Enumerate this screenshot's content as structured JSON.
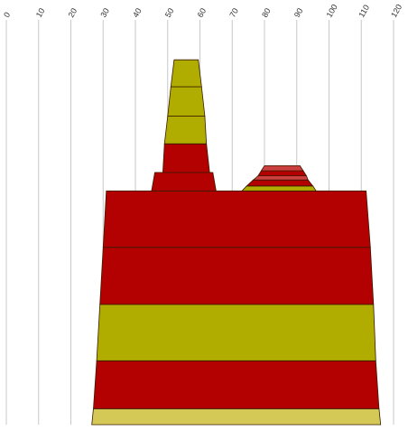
{
  "chart_data": {
    "type": "area",
    "subtype": "stacked-trapezoid-layers",
    "grid": true,
    "x_axis": {
      "position": "top",
      "range": [
        0,
        120
      ],
      "tick_labels": [
        "0",
        "10",
        "20",
        "30",
        "40",
        "50",
        "60",
        "70",
        "80",
        "90",
        "100",
        "110",
        "120"
      ],
      "tick_values": [
        0,
        10,
        20,
        30,
        40,
        50,
        60,
        70,
        80,
        90,
        100,
        110,
        120
      ]
    },
    "y_axis": {
      "range": [
        0,
        4.6
      ],
      "tick_labels": []
    },
    "colors": {
      "dark_red": "#b30000",
      "olive": "#b0ac00",
      "pale_olive": "#d4c957",
      "light_red": "#cd4040",
      "outline": "#3a1a00",
      "grid": "#c8c8c8"
    },
    "series": [
      {
        "layers": [
          {
            "bottom": 0.0,
            "top": 0.19,
            "x_bottom": [
              26.5,
              116.0
            ],
            "x_top": [
              27.0,
              115.5
            ],
            "color": "pale_olive"
          },
          {
            "bottom": 0.19,
            "top": 0.76,
            "x_bottom": [
              27.0,
              115.5
            ],
            "x_top": [
              28.0,
              114.5
            ],
            "color": "dark_red"
          },
          {
            "bottom": 0.76,
            "top": 1.43,
            "x_bottom": [
              28.0,
              114.5
            ],
            "x_top": [
              29.0,
              113.8
            ],
            "color": "olive"
          },
          {
            "bottom": 1.43,
            "top": 2.11,
            "x_bottom": [
              29.0,
              113.8
            ],
            "x_top": [
              30.0,
              112.8
            ],
            "color": "dark_red"
          },
          {
            "bottom": 2.11,
            "top": 2.78,
            "x_bottom": [
              30.0,
              112.8
            ],
            "x_top": [
              31.0,
              111.5
            ],
            "color": "dark_red"
          }
        ]
      },
      {
        "layers": [
          {
            "bottom": 2.78,
            "top": 3.0,
            "x_bottom": [
              45.0,
              65.0
            ],
            "x_top": [
              46.0,
              64.0
            ],
            "color": "dark_red"
          },
          {
            "bottom": 3.0,
            "top": 3.34,
            "x_bottom": [
              48.5,
              63.0
            ],
            "x_top": [
              49.0,
              62.0
            ],
            "color": "dark_red"
          },
          {
            "bottom": 3.34,
            "top": 3.67,
            "x_bottom": [
              49.0,
              62.0
            ],
            "x_top": [
              50.0,
              61.5
            ],
            "color": "olive"
          },
          {
            "bottom": 3.67,
            "top": 4.02,
            "x_bottom": [
              50.0,
              61.5
            ],
            "x_top": [
              51.0,
              60.5
            ],
            "color": "olive"
          },
          {
            "bottom": 4.02,
            "top": 4.34,
            "x_bottom": [
              51.0,
              60.5
            ],
            "x_top": [
              52.0,
              59.5
            ],
            "color": "olive"
          }
        ]
      },
      {
        "layers": [
          {
            "bottom": 2.78,
            "top": 2.84,
            "x_bottom": [
              73.0,
              96.0
            ],
            "x_top": [
              74.5,
              95.0
            ],
            "color": "olive"
          },
          {
            "bottom": 2.84,
            "top": 2.91,
            "x_bottom": [
              74.5,
              95.0
            ],
            "x_top": [
              76.5,
              93.5
            ],
            "color": "dark_red"
          },
          {
            "bottom": 2.91,
            "top": 2.96,
            "x_bottom": [
              76.5,
              93.5
            ],
            "x_top": [
              78.0,
              93.0
            ],
            "color": "light_red"
          },
          {
            "bottom": 2.96,
            "top": 3.02,
            "x_bottom": [
              78.0,
              93.0
            ],
            "x_top": [
              79.0,
              92.0
            ],
            "color": "dark_red"
          },
          {
            "bottom": 3.02,
            "top": 3.08,
            "x_bottom": [
              79.0,
              92.0
            ],
            "x_top": [
              80.0,
              91.0
            ],
            "color": "light_red"
          }
        ]
      }
    ]
  }
}
